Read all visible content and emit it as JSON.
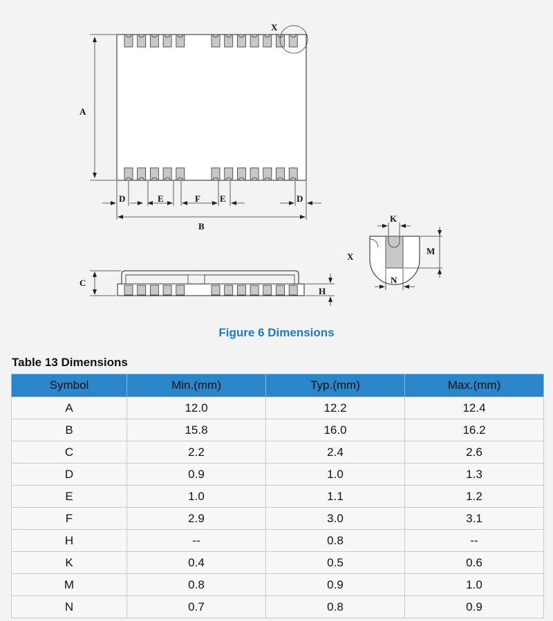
{
  "figure": {
    "caption": "Figure 6 Dimensions",
    "labels": {
      "A": "A",
      "B": "B",
      "C": "C",
      "D": "D",
      "E": "E",
      "F": "F",
      "H": "H",
      "K": "K",
      "M": "M",
      "N": "N",
      "X": "X"
    }
  },
  "table": {
    "title": "Table 13 Dimensions",
    "headers": [
      "Symbol",
      "Min.(mm)",
      "Typ.(mm)",
      "Max.(mm)"
    ],
    "rows": [
      [
        "A",
        "12.0",
        "12.2",
        "12.4"
      ],
      [
        "B",
        "15.8",
        "16.0",
        "16.2"
      ],
      [
        "C",
        "2.2",
        "2.4",
        "2.6"
      ],
      [
        "D",
        "0.9",
        "1.0",
        "1.3"
      ],
      [
        "E",
        "1.0",
        "1.1",
        "1.2"
      ],
      [
        "F",
        "2.9",
        "3.0",
        "3.1"
      ],
      [
        "H",
        "--",
        "0.8",
        "--"
      ],
      [
        "K",
        "0.4",
        "0.5",
        "0.6"
      ],
      [
        "M",
        "0.8",
        "0.9",
        "1.0"
      ],
      [
        "N",
        "0.7",
        "0.8",
        "0.9"
      ]
    ]
  }
}
